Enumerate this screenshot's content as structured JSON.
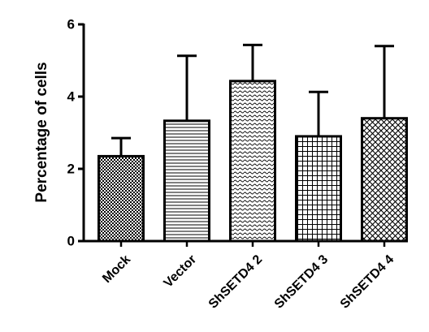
{
  "chart_data": {
    "type": "bar",
    "title": "",
    "xlabel": "",
    "ylabel": "Percentage of cells",
    "ylim": [
      0,
      6
    ],
    "yticks": [
      "0",
      "2",
      "4",
      "6"
    ],
    "categories": [
      "Mock",
      "Vector",
      "ShSETD4 2",
      "ShSETD4 3",
      "ShSETD4 4"
    ],
    "values": [
      2.35,
      3.33,
      4.43,
      2.9,
      3.4
    ],
    "error_upper": [
      0.5,
      1.8,
      1.0,
      1.23,
      2.0
    ],
    "bar_patterns": [
      "checker",
      "horizontal-lines",
      "wavy",
      "grid",
      "crosshatch"
    ],
    "grid": false,
    "colors": {
      "bar_stroke": "#000000",
      "pattern_ink": "#000000",
      "background": "#ffffff"
    }
  }
}
